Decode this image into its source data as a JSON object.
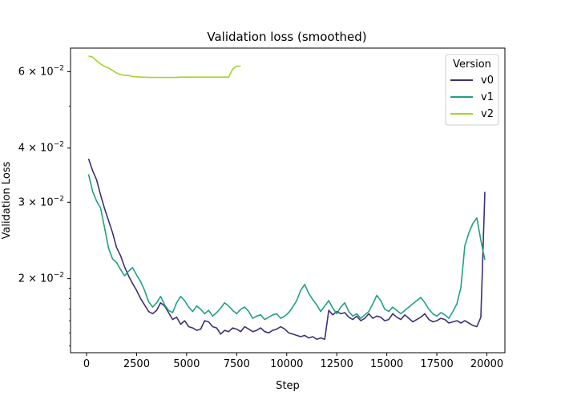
{
  "chart_data": {
    "type": "line",
    "title": "Validation loss (smoothed)",
    "xlabel": "Step",
    "ylabel": "Validation Loss",
    "xlim": [
      -800,
      20900
    ],
    "ylim": [
      0.0135,
      0.068
    ],
    "yscale": "log",
    "xticks": [
      0,
      2500,
      5000,
      7500,
      10000,
      12500,
      15000,
      17500,
      20000
    ],
    "xtick_labels": [
      "0",
      "2500",
      "5000",
      "7500",
      "10000",
      "12500",
      "15000",
      "17500",
      "20000"
    ],
    "yticks": [
      0.02,
      0.03,
      0.04,
      0.06
    ],
    "ytick_labels": [
      {
        "base": "2 × 10",
        "exp": "−2"
      },
      {
        "base": "3 × 10",
        "exp": "−2"
      },
      {
        "base": "4 × 10",
        "exp": "−2"
      },
      {
        "base": "6 × 10",
        "exp": "−2"
      }
    ],
    "legend": {
      "title": "Version",
      "position": "top-right"
    },
    "grid": false,
    "series": [
      {
        "name": "v0",
        "color": "#3f2f78",
        "x": [
          100,
          300,
          500,
          700,
          900,
          1100,
          1300,
          1500,
          1700,
          1900,
          2100,
          2300,
          2500,
          2700,
          2900,
          3100,
          3300,
          3500,
          3700,
          3900,
          4100,
          4300,
          4500,
          4700,
          4900,
          5100,
          5300,
          5500,
          5700,
          5900,
          6100,
          6300,
          6500,
          6700,
          6900,
          7100,
          7300,
          7500,
          7700,
          7900,
          8100,
          8300,
          8500,
          8700,
          8900,
          9100,
          9300,
          9500,
          9700,
          9900,
          10100,
          10300,
          10500,
          10700,
          10900,
          11100,
          11300,
          11500,
          11700,
          11900,
          12100,
          12300,
          12500,
          12700,
          12900,
          13100,
          13300,
          13500,
          13700,
          13900,
          14100,
          14300,
          14500,
          14700,
          14900,
          15100,
          15300,
          15500,
          15700,
          15900,
          16100,
          16300,
          16500,
          16700,
          16900,
          17100,
          17300,
          17500,
          17700,
          17900,
          18100,
          18300,
          18500,
          18700,
          18900,
          19100,
          19300,
          19500,
          19700,
          19900
        ],
        "values": [
          0.0378,
          0.0355,
          0.0338,
          0.0312,
          0.029,
          0.0272,
          0.0255,
          0.0236,
          0.0226,
          0.0213,
          0.0203,
          0.0195,
          0.0188,
          0.018,
          0.0174,
          0.0168,
          0.0166,
          0.0169,
          0.0176,
          0.0173,
          0.0167,
          0.0161,
          0.0163,
          0.0157,
          0.016,
          0.0155,
          0.0154,
          0.0152,
          0.0153,
          0.016,
          0.0159,
          0.0155,
          0.0154,
          0.0149,
          0.0152,
          0.0151,
          0.0154,
          0.0153,
          0.0151,
          0.0155,
          0.0153,
          0.0151,
          0.0152,
          0.0154,
          0.0151,
          0.015,
          0.0152,
          0.0153,
          0.0155,
          0.0153,
          0.015,
          0.0149,
          0.0148,
          0.0147,
          0.0148,
          0.0146,
          0.0147,
          0.0145,
          0.0146,
          0.0145,
          0.0169,
          0.0165,
          0.0168,
          0.0166,
          0.0167,
          0.0163,
          0.0161,
          0.0164,
          0.016,
          0.0162,
          0.0166,
          0.0162,
          0.0164,
          0.0163,
          0.016,
          0.0161,
          0.0166,
          0.0163,
          0.0161,
          0.0165,
          0.0162,
          0.0159,
          0.0161,
          0.0163,
          0.0166,
          0.0161,
          0.0159,
          0.016,
          0.0162,
          0.0161,
          0.0158,
          0.0159,
          0.016,
          0.0158,
          0.016,
          0.0158,
          0.0156,
          0.0155,
          0.0163,
          0.0317
        ]
      },
      {
        "name": "v1",
        "color": "#21a085",
        "x": [
          100,
          300,
          500,
          700,
          900,
          1100,
          1300,
          1500,
          1700,
          1900,
          2100,
          2300,
          2500,
          2700,
          2900,
          3100,
          3300,
          3500,
          3700,
          3900,
          4100,
          4300,
          4500,
          4700,
          4900,
          5100,
          5300,
          5500,
          5700,
          5900,
          6100,
          6300,
          6500,
          6700,
          6900,
          7100,
          7300,
          7500,
          7700,
          7900,
          8100,
          8300,
          8500,
          8700,
          8900,
          9100,
          9300,
          9500,
          9700,
          9900,
          10100,
          10300,
          10500,
          10700,
          10900,
          11100,
          11300,
          11500,
          11700,
          11900,
          12100,
          12300,
          12500,
          12700,
          12900,
          13100,
          13300,
          13500,
          13700,
          13900,
          14100,
          14300,
          14500,
          14700,
          14900,
          15100,
          15300,
          15500,
          15700,
          15900,
          16100,
          16300,
          16500,
          16700,
          16900,
          17100,
          17300,
          17500,
          17700,
          17900,
          18100,
          18300,
          18500,
          18700,
          18900,
          19100,
          19300,
          19500,
          19700,
          19900
        ],
        "values": [
          0.0348,
          0.0318,
          0.0302,
          0.0291,
          0.0262,
          0.0235,
          0.0222,
          0.0218,
          0.021,
          0.0203,
          0.0208,
          0.0212,
          0.0204,
          0.0197,
          0.0188,
          0.0177,
          0.0172,
          0.0176,
          0.0182,
          0.0174,
          0.0169,
          0.0167,
          0.0176,
          0.0182,
          0.0178,
          0.0172,
          0.0168,
          0.0173,
          0.017,
          0.0166,
          0.0169,
          0.0164,
          0.0167,
          0.0171,
          0.0176,
          0.0173,
          0.0169,
          0.0166,
          0.017,
          0.0172,
          0.0168,
          0.0162,
          0.0164,
          0.0165,
          0.0161,
          0.0163,
          0.0165,
          0.0166,
          0.0162,
          0.0164,
          0.0167,
          0.0172,
          0.0178,
          0.0188,
          0.0194,
          0.0185,
          0.0179,
          0.0174,
          0.0168,
          0.0173,
          0.0178,
          0.0171,
          0.0166,
          0.0172,
          0.0176,
          0.0168,
          0.0164,
          0.0166,
          0.0162,
          0.0165,
          0.0168,
          0.0175,
          0.0183,
          0.0178,
          0.017,
          0.0168,
          0.0172,
          0.0169,
          0.0166,
          0.0169,
          0.0172,
          0.0175,
          0.0178,
          0.0181,
          0.0176,
          0.017,
          0.0166,
          0.0164,
          0.0167,
          0.0165,
          0.0162,
          0.0168,
          0.0175,
          0.0191,
          0.0238,
          0.0255,
          0.0268,
          0.0276,
          0.0245,
          0.0221
        ]
      },
      {
        "name": "v2",
        "color": "#a0d62a",
        "x": [
          100,
          300,
          500,
          700,
          900,
          1100,
          1300,
          1500,
          1700,
          1900,
          2100,
          2300,
          2500,
          2700,
          2900,
          3100,
          3300,
          3500,
          3700,
          3900,
          4100,
          4300,
          4500,
          4700,
          4900,
          5100,
          5300,
          5500,
          5700,
          5900,
          6100,
          6300,
          6500,
          6700,
          6900,
          7100,
          7300,
          7500,
          7700
        ],
        "values": [
          0.0652,
          0.0648,
          0.0636,
          0.0625,
          0.0617,
          0.0612,
          0.0604,
          0.0596,
          0.0591,
          0.0589,
          0.0588,
          0.0585,
          0.0584,
          0.0583,
          0.0583,
          0.0582,
          0.0582,
          0.0582,
          0.0582,
          0.0582,
          0.0582,
          0.0582,
          0.0582,
          0.0583,
          0.0583,
          0.0583,
          0.0583,
          0.0583,
          0.0583,
          0.0583,
          0.0583,
          0.0583,
          0.0583,
          0.0583,
          0.0583,
          0.0583,
          0.0608,
          0.0618,
          0.0618
        ]
      }
    ]
  }
}
